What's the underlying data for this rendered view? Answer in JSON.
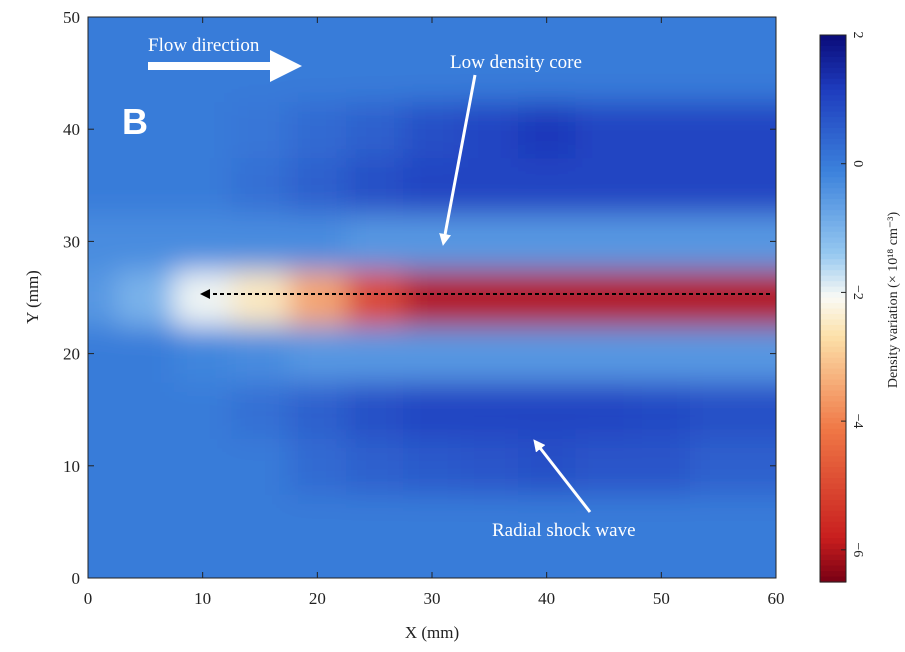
{
  "chart_data": {
    "type": "heatmap",
    "panel_label": "B",
    "x_label": "X (mm)",
    "y_label": "Y (mm)",
    "colorbar_label": "Density variation (× 10¹⁸ cm⁻³)",
    "annotations": [
      "Flow direction",
      "Low density core",
      "Radial shock wave"
    ],
    "xlim": [
      0,
      60
    ],
    "ylim": [
      0,
      50
    ],
    "xticks": [
      0,
      10,
      20,
      30,
      40,
      50,
      60
    ],
    "yticks": [
      0,
      10,
      20,
      30,
      40,
      50
    ],
    "colorbar_lim": [
      -6.5,
      2
    ],
    "colorbar_ticks": [
      {
        "value": -6,
        "label": "−6"
      },
      {
        "value": -4,
        "label": "−4"
      },
      {
        "value": -2,
        "label": "−2"
      },
      0,
      2
    ],
    "x": [
      0,
      5,
      10,
      15,
      20,
      25,
      30,
      35,
      40,
      45,
      50,
      55,
      60
    ],
    "y": [
      0,
      5,
      10,
      15,
      20,
      25,
      30,
      35,
      40,
      45,
      50
    ],
    "z": [
      [
        0,
        0,
        0,
        0,
        0,
        0,
        0,
        0,
        0,
        0,
        0,
        0,
        0
      ],
      [
        0,
        0,
        0,
        0,
        0,
        0,
        0,
        0,
        0,
        0,
        0,
        0,
        0
      ],
      [
        0,
        0,
        0,
        0,
        0.3,
        0.5,
        0.6,
        0.7,
        0.8,
        0.7,
        0.7,
        0.5,
        0.5
      ],
      [
        0,
        0,
        0,
        0.2,
        0.5,
        0.8,
        1,
        1,
        1,
        1,
        0.9,
        0.8,
        0.8
      ],
      [
        0,
        0,
        -0.2,
        -0.3,
        -0.5,
        -0.5,
        -0.5,
        -0.5,
        -0.5,
        -0.5,
        -0.5,
        -0.5,
        -0.5
      ],
      [
        -0.5,
        -1,
        -2,
        -2.5,
        -3.5,
        -5,
        -6,
        -6,
        -6,
        -6,
        -6,
        -6,
        -6
      ],
      [
        -0.3,
        -0.3,
        -0.3,
        -0.3,
        -0.3,
        -0.5,
        -0.5,
        -0.5,
        -0.5,
        -0.5,
        -0.5,
        -0.5,
        -0.5
      ],
      [
        0,
        0,
        0,
        0.2,
        0.5,
        0.8,
        1,
        1,
        1,
        1,
        1,
        1,
        1
      ],
      [
        0,
        0,
        0,
        0.1,
        0.3,
        0.5,
        0.8,
        1,
        1.2,
        1,
        1,
        1,
        1
      ],
      [
        0,
        0,
        0,
        0,
        0,
        0,
        0,
        0,
        0,
        0,
        0,
        0,
        0
      ],
      [
        0,
        0,
        0,
        0,
        0,
        0,
        0,
        0,
        0,
        0,
        0,
        0,
        0
      ]
    ]
  }
}
